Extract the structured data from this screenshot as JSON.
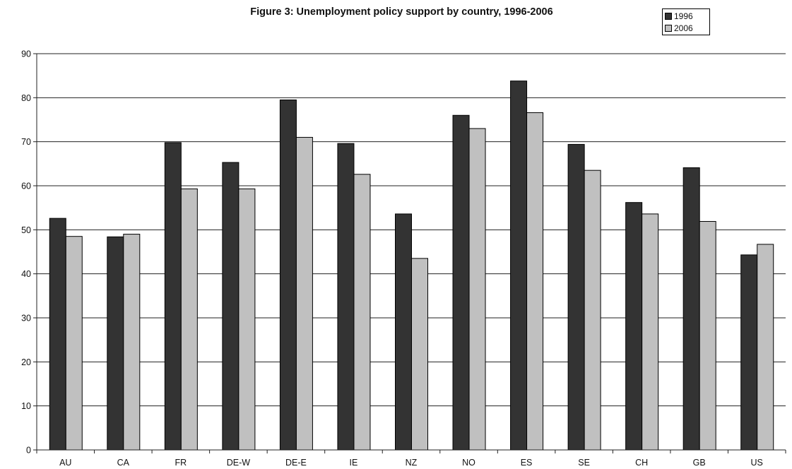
{
  "chart_data": {
    "type": "bar",
    "title": "Figure 3: Unemployment policy support by country, 1996-2006",
    "xlabel": "",
    "ylabel": "",
    "ylim": [
      0,
      90
    ],
    "yticks": [
      "0",
      "10",
      "20",
      "30",
      "40",
      "50",
      "60",
      "70",
      "80",
      "90"
    ],
    "grid": true,
    "legend_position": "top-right",
    "categories": [
      "AU",
      "CA",
      "FR",
      "DE-W",
      "DE-E",
      "IE",
      "NZ",
      "NO",
      "ES",
      "SE",
      "CH",
      "GB",
      "US"
    ],
    "series": [
      {
        "name": "1996",
        "color": "#333333",
        "values": [
          52.6,
          48.4,
          69.8,
          65.3,
          79.5,
          69.6,
          53.6,
          76.0,
          83.8,
          69.4,
          56.2,
          64.1,
          44.3
        ]
      },
      {
        "name": "2006",
        "color": "#c0c0c0",
        "values": [
          48.5,
          49.0,
          59.3,
          59.3,
          71.0,
          62.6,
          43.5,
          73.0,
          76.6,
          63.5,
          53.6,
          51.9,
          46.7
        ]
      }
    ]
  }
}
